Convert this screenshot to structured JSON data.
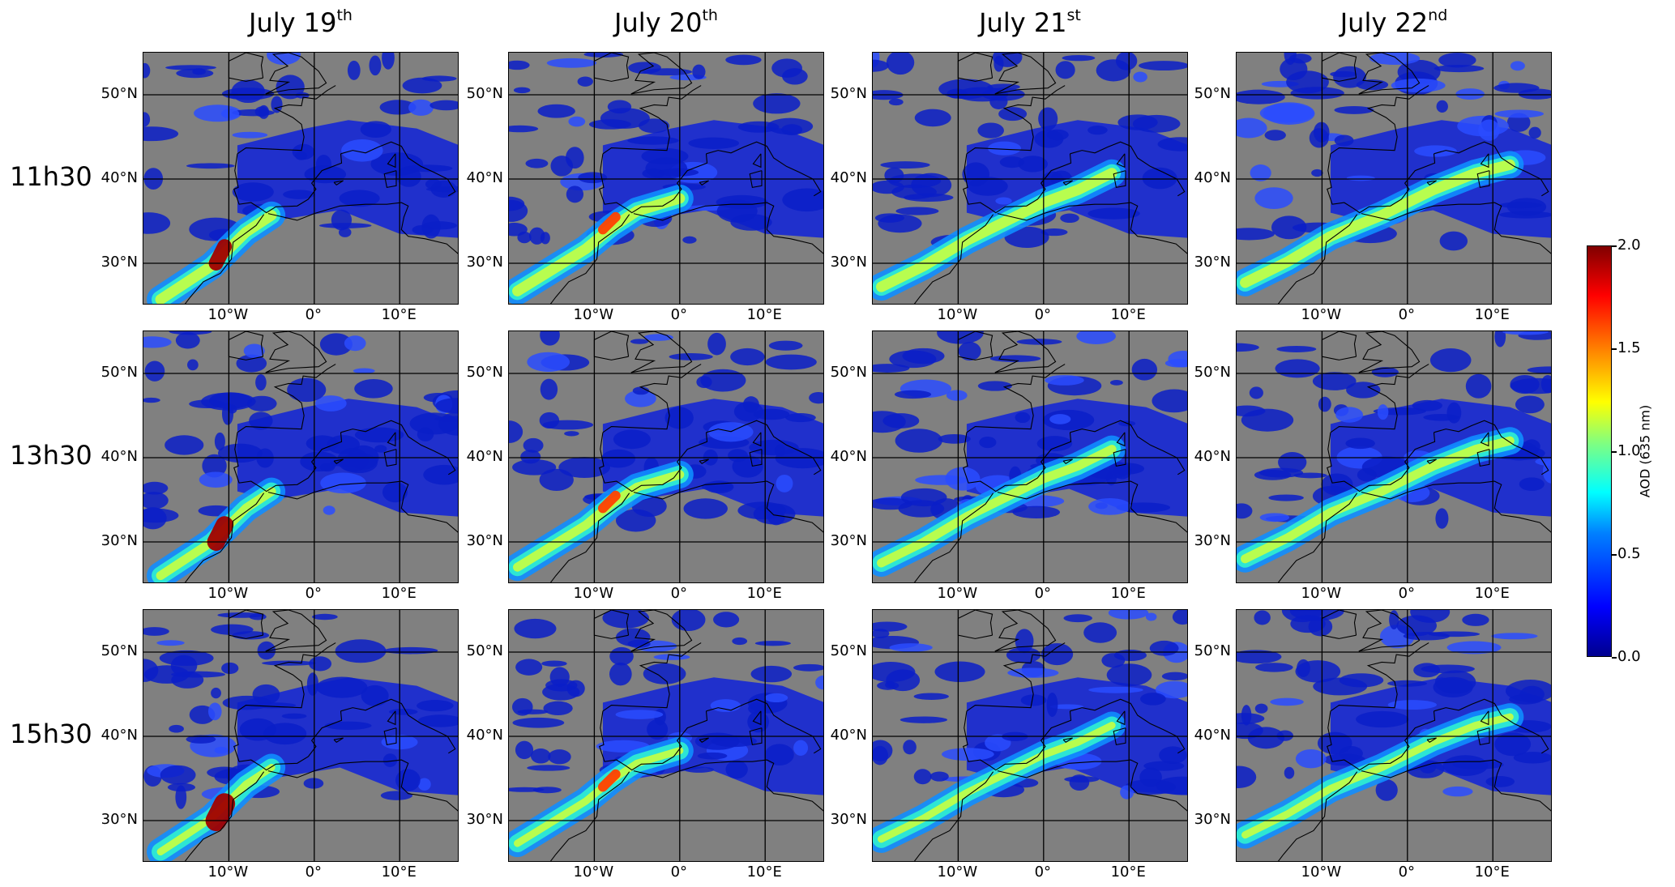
{
  "columns": [
    {
      "base": "July 19",
      "sup": "th"
    },
    {
      "base": "July 20",
      "sup": "th"
    },
    {
      "base": "July 21",
      "sup": "st"
    },
    {
      "base": "July 22",
      "sup": "nd"
    }
  ],
  "rows": [
    "11h30",
    "13h30",
    "15h30"
  ],
  "lat_ticks": [
    "50°N",
    "40°N",
    "30°N"
  ],
  "lon_ticks": [
    "10°W",
    "0°",
    "10°E"
  ],
  "colorbar": {
    "label": "AOD (635 nm)",
    "ticks": [
      "2.0",
      "1.5",
      "1.0",
      "0.5",
      "0.0"
    ],
    "range": [
      0.0,
      2.0
    ],
    "colormap": "jet",
    "colors": [
      "#00008f",
      "#0000ff",
      "#0080ff",
      "#00ffff",
      "#80ff80",
      "#ffff00",
      "#ff8000",
      "#ff0000",
      "#800000"
    ]
  },
  "map_extent": {
    "lon": [
      -20,
      17
    ],
    "lat": [
      25,
      55
    ]
  },
  "no_data_color": "#808080",
  "gridlines": {
    "lon": [
      -10,
      0,
      10
    ],
    "lat": [
      30,
      40,
      50
    ]
  }
}
